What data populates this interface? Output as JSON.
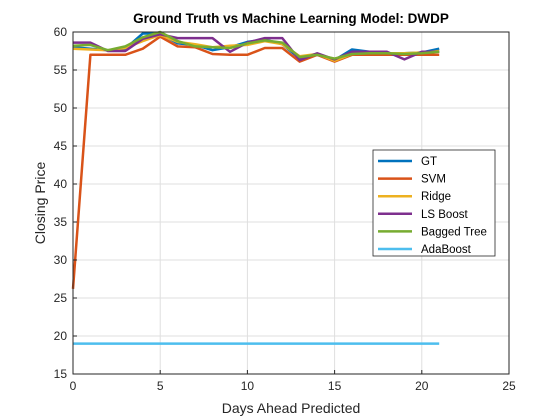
{
  "chart_data": {
    "type": "line",
    "title": "Ground Truth vs Machine Learning Model: DWDP",
    "xlabel": "Days Ahead Predicted",
    "ylabel": "Closing Price",
    "xlim": [
      0,
      25
    ],
    "ylim": [
      15,
      60
    ],
    "xticks": [
      0,
      5,
      10,
      15,
      20,
      25
    ],
    "yticks": [
      15,
      20,
      25,
      30,
      35,
      40,
      45,
      50,
      55,
      60
    ],
    "grid": true,
    "legend_position": "right-middle",
    "x": [
      0,
      1,
      2,
      3,
      4,
      5,
      6,
      7,
      8,
      9,
      10,
      11,
      12,
      13,
      14,
      15,
      16,
      17,
      18,
      19,
      20,
      21
    ],
    "series": [
      {
        "name": "GT",
        "color": "#0072BD",
        "values": [
          58.0,
          57.8,
          57.6,
          57.8,
          59.8,
          59.8,
          58.5,
          58.3,
          57.6,
          58.0,
          58.7,
          59.0,
          58.4,
          56.5,
          57.0,
          56.3,
          57.7,
          57.4,
          57.0,
          57.2,
          57.3,
          57.8
        ]
      },
      {
        "name": "SVM",
        "color": "#D95319",
        "values": [
          26.2,
          57.0,
          57.0,
          57.0,
          57.8,
          59.4,
          58.1,
          58.0,
          57.1,
          57.0,
          57.0,
          57.9,
          57.9,
          56.1,
          57.0,
          56.1,
          57.0,
          57.0,
          57.0,
          57.0,
          57.0,
          57.0
        ]
      },
      {
        "name": "Ridge",
        "color": "#EDB120",
        "values": [
          57.8,
          57.7,
          57.6,
          57.9,
          58.8,
          59.6,
          58.7,
          58.4,
          58.0,
          58.2,
          58.3,
          58.8,
          58.4,
          56.8,
          57.1,
          56.2,
          57.1,
          57.3,
          57.2,
          57.2,
          57.3,
          57.5
        ]
      },
      {
        "name": "LS Boost",
        "color": "#7E2F8E",
        "values": [
          58.6,
          58.6,
          57.5,
          57.5,
          59.1,
          59.7,
          59.2,
          59.2,
          59.2,
          57.4,
          58.6,
          59.2,
          59.2,
          56.3,
          57.2,
          56.4,
          57.4,
          57.4,
          57.4,
          56.4,
          57.4,
          57.4
        ]
      },
      {
        "name": "Bagged Tree",
        "color": "#77AC30",
        "values": [
          58.2,
          58.3,
          57.6,
          58.1,
          59.3,
          60.0,
          58.8,
          58.1,
          58.0,
          57.9,
          58.5,
          58.9,
          58.6,
          56.7,
          57.0,
          56.5,
          57.1,
          57.2,
          57.2,
          57.1,
          57.2,
          57.4
        ]
      },
      {
        "name": "AdaBoost",
        "color": "#4DBEEE",
        "values": [
          19.0,
          19.0,
          19.0,
          19.0,
          19.0,
          19.0,
          19.0,
          19.0,
          19.0,
          19.0,
          19.0,
          19.0,
          19.0,
          19.0,
          19.0,
          19.0,
          19.0,
          19.0,
          19.0,
          19.0,
          19.0,
          19.0
        ]
      }
    ]
  }
}
